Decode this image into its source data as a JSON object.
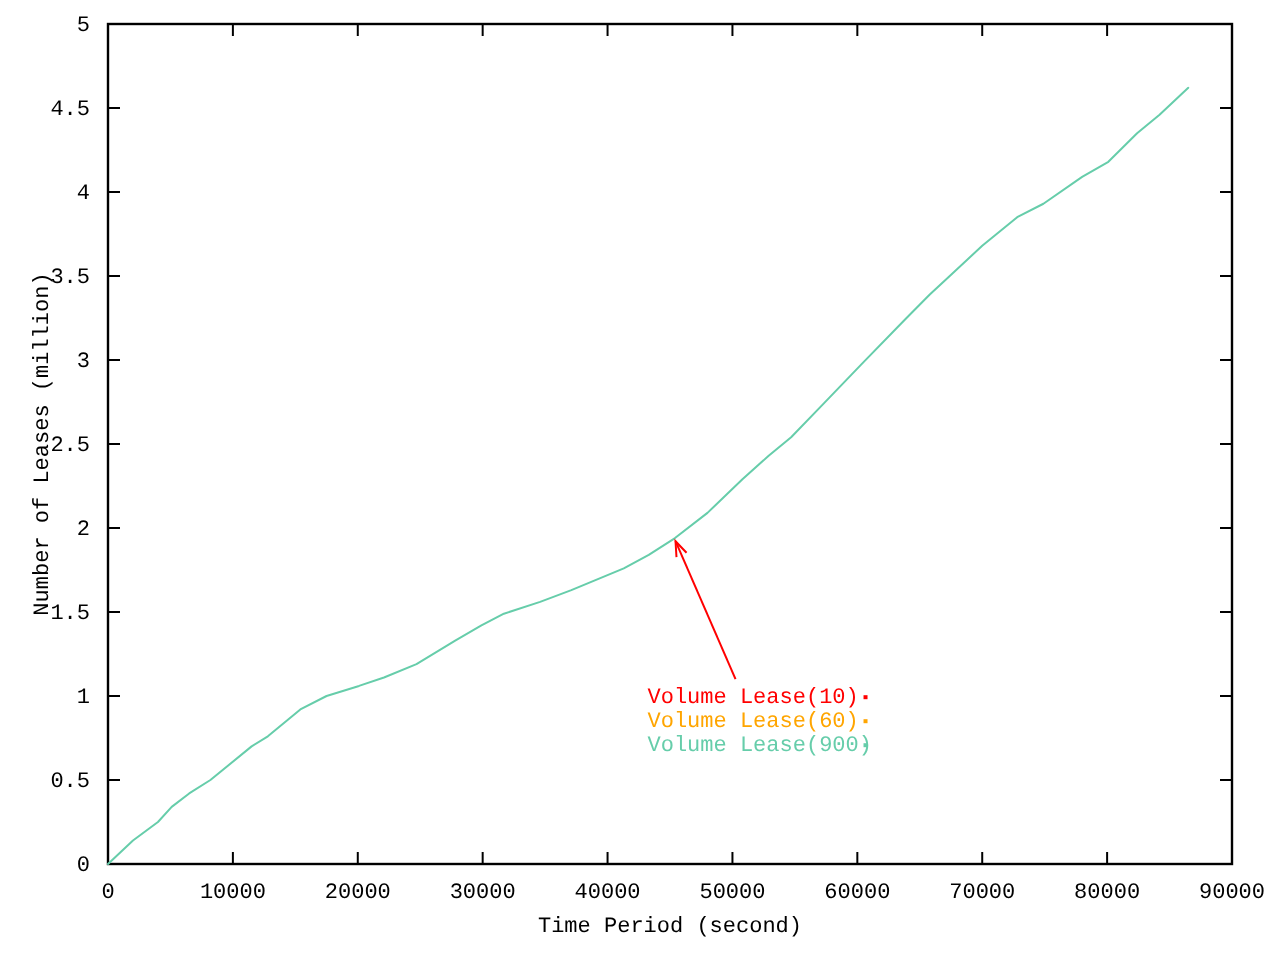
{
  "chart_data": {
    "type": "line",
    "xlabel": "Time Period (second)",
    "ylabel": "Number of Leases (million)",
    "x": [
      0,
      2000,
      4000,
      5100,
      6500,
      8200,
      11500,
      12800,
      15400,
      17500,
      20100,
      22100,
      24700,
      27800,
      29900,
      31700,
      34600,
      37100,
      41300,
      43300,
      45400,
      48000,
      50800,
      52900,
      54700,
      57300,
      60400,
      63800,
      65800,
      67400,
      70000,
      72800,
      74900,
      78000,
      80100,
      82400,
      84200,
      86500
    ],
    "series": [
      {
        "name": "Volume Lease(10)",
        "color": "#ff0000",
        "values": [
          null,
          null,
          null,
          null,
          null,
          null,
          null,
          null,
          null,
          null,
          null,
          null,
          null,
          null,
          null,
          null,
          null,
          null,
          null,
          null,
          null,
          null,
          null,
          null,
          null,
          null,
          null,
          null,
          null,
          null,
          null,
          null,
          null,
          null,
          null,
          null,
          null,
          null
        ]
      },
      {
        "name": "Volume Lease(60)",
        "color": "#ffa500",
        "values": [
          null,
          null,
          null,
          null,
          null,
          null,
          null,
          null,
          null,
          null,
          null,
          null,
          null,
          null,
          null,
          null,
          null,
          null,
          null,
          null,
          null,
          null,
          null,
          null,
          null,
          null,
          null,
          null,
          null,
          null,
          null,
          null,
          null,
          null,
          null,
          null,
          null,
          null
        ]
      },
      {
        "name": "Volume Lease(900)",
        "color": "#66cdaa",
        "values": [
          0,
          0.14,
          0.25,
          0.34,
          0.42,
          0.5,
          0.7,
          0.76,
          0.92,
          1.0,
          1.06,
          1.11,
          1.19,
          1.33,
          1.42,
          1.49,
          1.56,
          1.63,
          1.76,
          1.84,
          1.94,
          2.09,
          2.29,
          2.43,
          2.54,
          2.74,
          2.98,
          3.24,
          3.39,
          3.5,
          3.68,
          3.85,
          3.93,
          4.09,
          4.18,
          4.35,
          4.46,
          4.62
        ]
      }
    ],
    "xlim": [
      0,
      90000
    ],
    "ylim": [
      0,
      5
    ],
    "xticks": [
      0,
      10000,
      20000,
      30000,
      40000,
      50000,
      60000,
      70000,
      80000,
      90000
    ],
    "yticks": [
      0,
      0.5,
      1,
      1.5,
      2,
      2.5,
      3,
      3.5,
      4,
      4.5,
      5
    ],
    "legend": "bottom"
  }
}
